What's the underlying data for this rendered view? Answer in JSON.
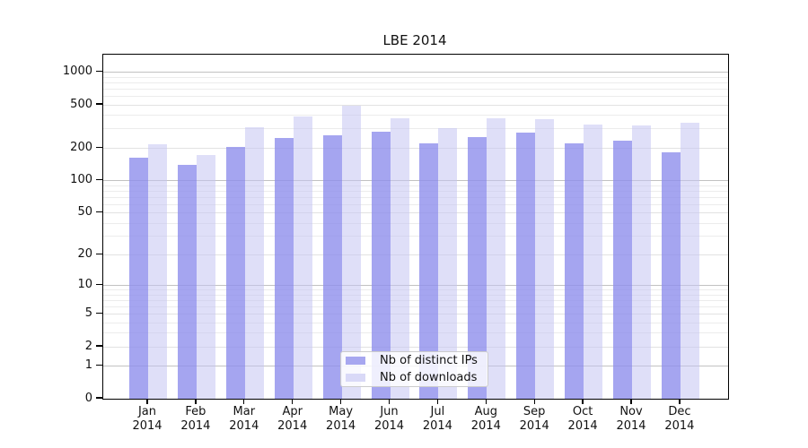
{
  "title": "LBE 2014",
  "chart_data": {
    "type": "bar",
    "categories": [
      "Jan",
      "Feb",
      "Mar",
      "Apr",
      "May",
      "Jun",
      "Jul",
      "Aug",
      "Sep",
      "Oct",
      "Nov",
      "Dec"
    ],
    "year": "2014",
    "series": [
      {
        "name": "Nb of distinct IPs",
        "color": "rgba(143,143,236,0.80)",
        "legend_color": "#a7a7f0",
        "values": [
          163,
          140,
          205,
          247,
          262,
          283,
          221,
          252,
          277,
          221,
          234,
          183
        ]
      },
      {
        "name": "Nb of downloads",
        "color": "rgba(197,197,242,0.55)",
        "legend_color": "#d9d9f7",
        "values": [
          218,
          172,
          311,
          390,
          495,
          376,
          305,
          376,
          369,
          330,
          323,
          342
        ]
      }
    ],
    "xlabel": "",
    "ylabel": "",
    "yscale": "log1p",
    "ylim": [
      0,
      1450
    ],
    "y_ticks": [
      0,
      1,
      2,
      5,
      10,
      20,
      50,
      100,
      200,
      500,
      1000
    ],
    "grid": "horizontal major+minor (log decades darker)",
    "legend_position": "inside lower-center",
    "grid_colors": {
      "decade": "#c2c2c2",
      "labeled": "#e2e2e2",
      "minor": "#ececec"
    }
  }
}
